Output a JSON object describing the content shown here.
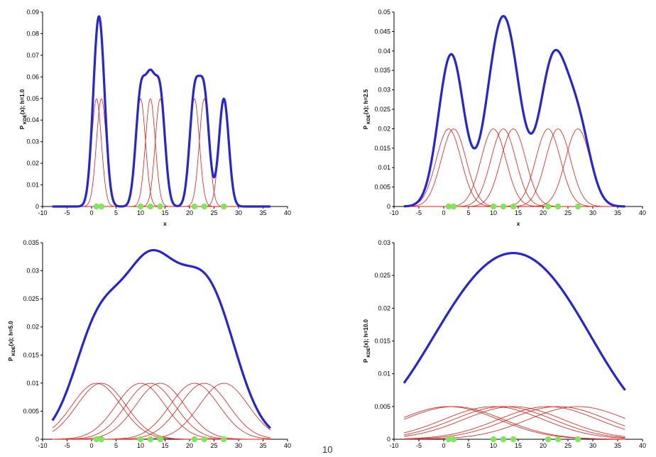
{
  "page_number": "10",
  "colors": {
    "kde": "#2424d8",
    "kernel": "#e01a12",
    "point": "#7fe65a",
    "axis": "#000000"
  },
  "chart_data": [
    {
      "type": "line",
      "h": 1.0,
      "ylabel": {
        "base": "P",
        "sub": "KDE",
        "rest": "(x); h=1.0"
      },
      "xlabel": "x",
      "xticks": [
        -10,
        -5,
        0,
        5,
        10,
        15,
        20,
        25,
        30,
        35,
        40
      ],
      "xtick_labels": [
        "-10",
        "-5",
        "0",
        "5",
        "10",
        "15",
        "20",
        "25",
        "30",
        "35",
        "40"
      ],
      "yticks": [
        0,
        0.01,
        0.02,
        0.03,
        0.04,
        0.05,
        0.06,
        0.07,
        0.08,
        0.09
      ],
      "ytick_labels": [
        "0",
        "0.01",
        "0.02",
        "0.03",
        "0.04",
        "0.05",
        "0.06",
        "0.07",
        "0.08",
        "0.09"
      ],
      "xlim": [
        -10,
        40
      ],
      "ylim": [
        0,
        0.09
      ],
      "curve_range": [
        -8,
        36.5
      ],
      "data_points": [
        1,
        2,
        10,
        12,
        14,
        21,
        23,
        27
      ]
    },
    {
      "type": "line",
      "h": 2.5,
      "ylabel": {
        "base": "P",
        "sub": "KDE",
        "rest": "(x); h=2.5"
      },
      "xlabel": "x",
      "xticks": [
        -10,
        -5,
        0,
        5,
        10,
        15,
        20,
        25,
        30,
        35,
        40
      ],
      "xtick_labels": [
        "-10",
        "-5",
        "0",
        "5",
        "10",
        "15",
        "20",
        "25",
        "30",
        "35",
        "40"
      ],
      "yticks": [
        0,
        0.005,
        0.01,
        0.015,
        0.02,
        0.025,
        0.03,
        0.035,
        0.04,
        0.045,
        0.05
      ],
      "ytick_labels": [
        "0",
        "0.005",
        "0.01",
        "0.015",
        "0.02",
        "0.025",
        "0.03",
        "0.035",
        "0.04",
        "0.045",
        "0.05"
      ],
      "xlim": [
        -10,
        40
      ],
      "ylim": [
        0,
        0.05
      ],
      "curve_range": [
        -8,
        36.5
      ],
      "data_points": [
        1,
        2,
        10,
        12,
        14,
        21,
        23,
        27
      ]
    },
    {
      "type": "line",
      "h": 5.0,
      "ylabel": {
        "base": "P",
        "sub": "KDE",
        "rest": "(x); h=5.0"
      },
      "xlabel": "",
      "xticks": [
        -10,
        -5,
        0,
        5,
        10,
        15,
        20,
        25,
        30,
        35,
        40
      ],
      "xtick_labels": [
        "-10",
        "-5",
        "0",
        "5",
        "10",
        "15",
        "20",
        "25",
        "30",
        "35",
        "40"
      ],
      "yticks": [
        0,
        0.005,
        0.01,
        0.015,
        0.02,
        0.025,
        0.03,
        0.035
      ],
      "ytick_labels": [
        "0",
        "0.005",
        "0.01",
        "0.015",
        "0.02",
        "0.025",
        "0.03",
        "0.035"
      ],
      "xlim": [
        -10,
        40
      ],
      "ylim": [
        0,
        0.035
      ],
      "curve_range": [
        -8,
        36.5
      ],
      "data_points": [
        1,
        2,
        10,
        12,
        14,
        21,
        23,
        27
      ]
    },
    {
      "type": "line",
      "h": 10.0,
      "ylabel": {
        "base": "P",
        "sub": "KDE",
        "rest": "(x); h=10.0"
      },
      "xlabel": "",
      "xticks": [
        -10,
        -5,
        0,
        5,
        10,
        15,
        20,
        25,
        30,
        35,
        40
      ],
      "xtick_labels": [
        "-10",
        "-5",
        "0",
        "5",
        "10",
        "15",
        "20",
        "25",
        "30",
        "35",
        "40"
      ],
      "yticks": [
        0,
        0.005,
        0.01,
        0.015,
        0.02,
        0.025,
        0.03
      ],
      "ytick_labels": [
        "0",
        "0.005",
        "0.01",
        "0.015",
        "0.02",
        "0.025",
        "0.03"
      ],
      "xlim": [
        -10,
        40
      ],
      "ylim": [
        0,
        0.03
      ],
      "curve_range": [
        -8,
        36.5
      ],
      "data_points": [
        1,
        2,
        10,
        12,
        14,
        21,
        23,
        27
      ]
    }
  ]
}
